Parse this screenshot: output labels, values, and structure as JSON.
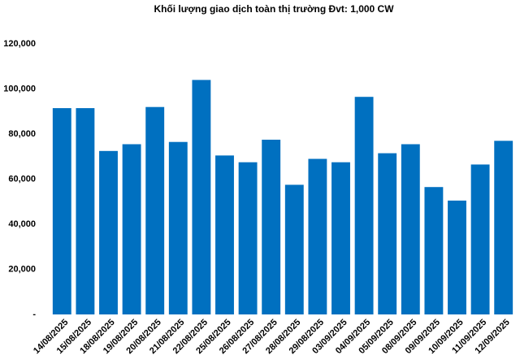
{
  "chart_data": {
    "type": "bar",
    "title": "Khối lượng giao dịch toàn thị trường Đvt: 1,000 CW",
    "categories": [
      "14/08/2025",
      "15/08/2025",
      "18/08/2025",
      "19/08/2025",
      "20/08/2025",
      "21/08/2025",
      "22/08/2025",
      "25/08/2025",
      "26/08/2025",
      "27/08/2025",
      "28/08/2025",
      "29/08/2025",
      "03/09/2025",
      "04/09/2025",
      "05/09/2025",
      "08/09/2025",
      "09/09/2025",
      "10/09/2025",
      "11/09/2025",
      "12/09/2025"
    ],
    "values": [
      91500,
      91500,
      72500,
      75500,
      92000,
      76500,
      104000,
      70500,
      67500,
      77500,
      57500,
      69000,
      67500,
      96500,
      71500,
      75500,
      56500,
      50500,
      66500,
      77000
    ],
    "color": "#0070c0",
    "ylim": [
      0,
      120000
    ],
    "yticks": [
      {
        "value": 0,
        "label": "-"
      },
      {
        "value": 20000,
        "label": "20,000"
      },
      {
        "value": 40000,
        "label": "40,000"
      },
      {
        "value": 60000,
        "label": "60,000"
      },
      {
        "value": 80000,
        "label": "80,000"
      },
      {
        "value": 100000,
        "label": "100,000"
      },
      {
        "value": 120000,
        "label": "120,000"
      }
    ],
    "grid": false
  }
}
